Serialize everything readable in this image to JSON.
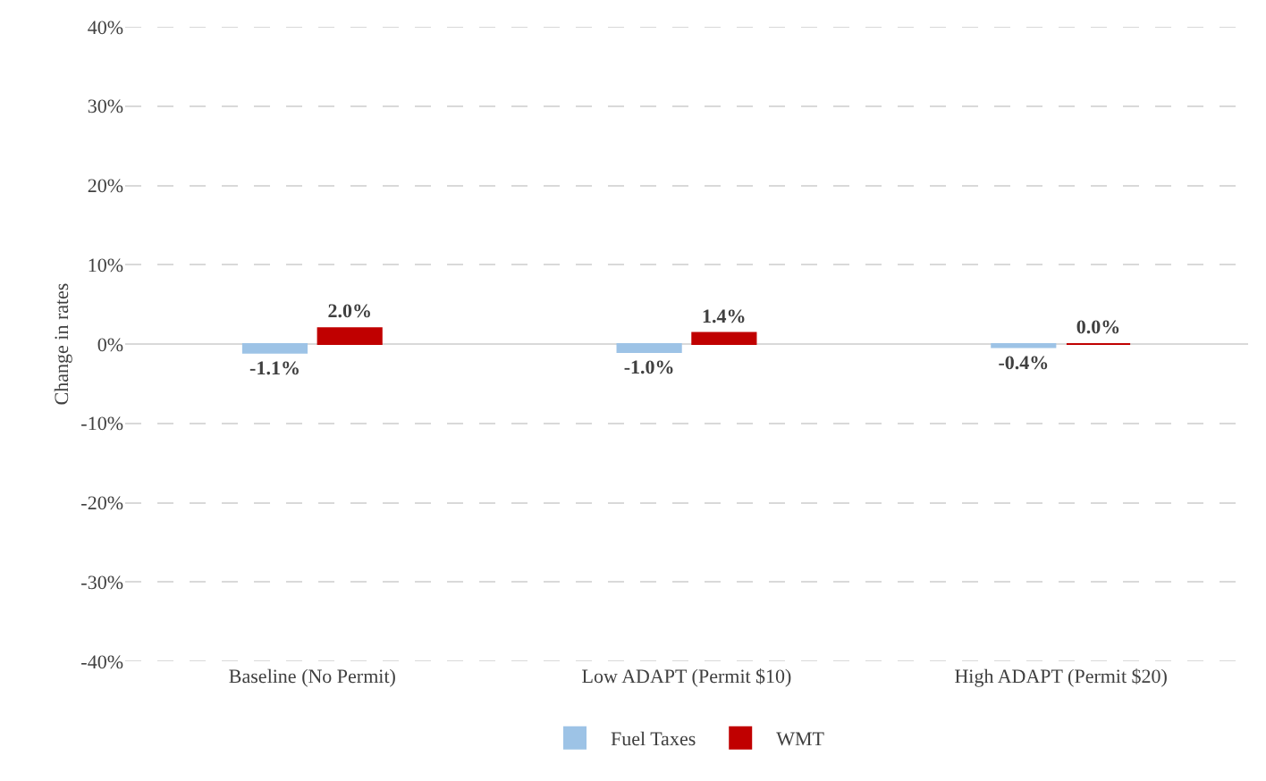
{
  "chart_data": {
    "type": "bar",
    "ylabel": "Change in rates",
    "categories": [
      "Baseline (No Permit)",
      "Low ADAPT (Permit $10)",
      "High ADAPT (Permit $20)"
    ],
    "series": [
      {
        "name": "Fuel Taxes",
        "color": "#9dc3e6",
        "values": [
          -1.1,
          -1.0,
          -0.4
        ],
        "value_labels": [
          "-1.1%",
          "-1.0%",
          "-0.4%"
        ]
      },
      {
        "name": "WMT",
        "color": "#c00000",
        "values": [
          2.0,
          1.4,
          0.0
        ],
        "value_labels": [
          "2.0%",
          "1.4%",
          "0.0%"
        ]
      }
    ],
    "ylim": [
      -40,
      40
    ],
    "yticks": [
      {
        "value": -40,
        "label": "-40%"
      },
      {
        "value": -30,
        "label": "-30%"
      },
      {
        "value": -20,
        "label": "-20%"
      },
      {
        "value": -10,
        "label": "-10%"
      },
      {
        "value": 0,
        "label": "0%"
      },
      {
        "value": 10,
        "label": "10%"
      },
      {
        "value": 20,
        "label": "20%"
      },
      {
        "value": 30,
        "label": "30%"
      },
      {
        "value": 40,
        "label": "40%"
      }
    ],
    "grid": "y",
    "legend": "bottom"
  }
}
